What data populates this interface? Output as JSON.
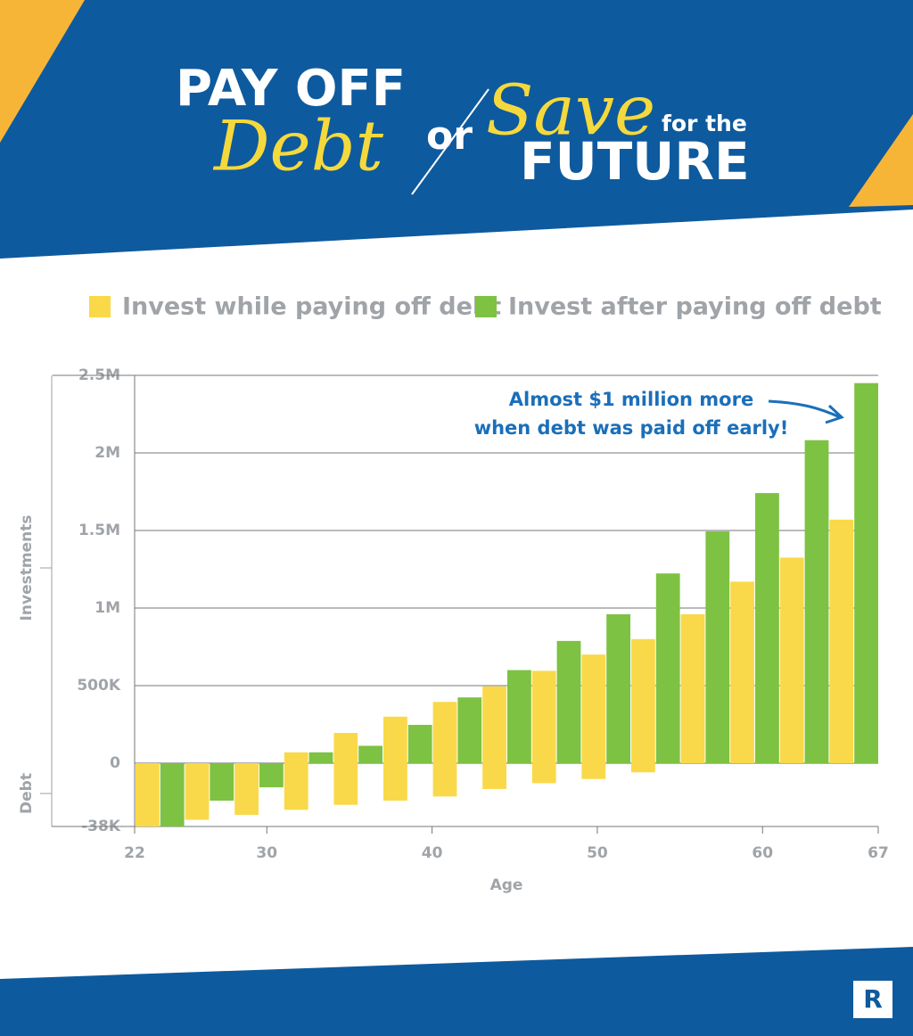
{
  "header": {
    "line1": "PAY OFF",
    "debt": "Debt",
    "or": "or",
    "save": "Save",
    "for_the": "for the",
    "future": "FUTURE"
  },
  "logo": "R",
  "chart_data": {
    "type": "bar",
    "x": [
      22,
      25,
      28,
      31,
      34,
      37,
      40,
      43,
      46,
      49,
      52,
      55,
      58,
      61,
      64
    ],
    "series": [
      {
        "name": "Invest while paying off debt",
        "color": "#f9d949",
        "values": [
          null,
          null,
          null,
          70000,
          195000,
          300000,
          395000,
          495000,
          595000,
          700000,
          800000,
          960000,
          1170000,
          1325000,
          1570000
        ],
        "debt": [
          -38000,
          -34000,
          -31000,
          -28000,
          -25000,
          -22500,
          -20000,
          -15500,
          -12000,
          -9500,
          -5500,
          null,
          null,
          null,
          null
        ]
      },
      {
        "name": "Invest after paying off debt",
        "color": "#7dc242",
        "values": [
          null,
          null,
          null,
          70000,
          112000,
          247000,
          424000,
          600000,
          788000,
          960000,
          1223000,
          1494000,
          1741000,
          2082000,
          2450000
        ],
        "debt": [
          -38000,
          -22500,
          -14500,
          null,
          null,
          null,
          null,
          null,
          null,
          null,
          null,
          null,
          null,
          null,
          null
        ]
      }
    ],
    "ylim": [
      -38000,
      2500000
    ],
    "yticks": [
      {
        "value": 2500000,
        "label": "2.5M"
      },
      {
        "value": 2000000,
        "label": "2M"
      },
      {
        "value": 1500000,
        "label": "1.5M"
      },
      {
        "value": 1000000,
        "label": "1M"
      },
      {
        "value": 500000,
        "label": "500K"
      },
      0,
      {
        "value": -38000,
        "label": "-38K"
      }
    ],
    "xlim": [
      22,
      67
    ],
    "xticks": [
      22,
      30,
      40,
      50,
      60,
      67
    ],
    "bar_span": 3,
    "x_label": "Age",
    "y_label": "Investments",
    "y_label_negative": "Debt",
    "annotation": [
      "Almost $1 million more",
      "when debt was paid off early!"
    ],
    "grid": true
  }
}
